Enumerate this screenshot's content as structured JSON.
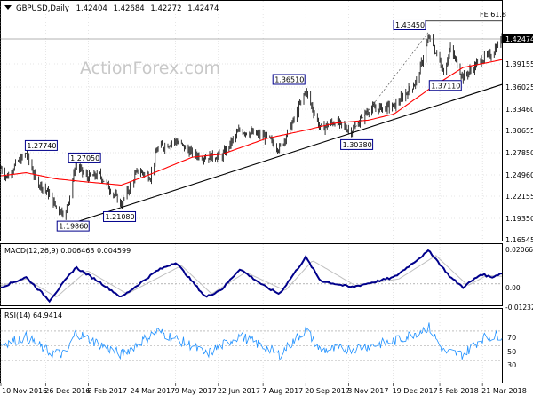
{
  "header": {
    "symbol_line": "GBPUSD,Daily",
    "ohlc": [
      "1.42404",
      "1.42684",
      "1.42272",
      "1.42474"
    ]
  },
  "watermark": "ActionForex.com",
  "colors": {
    "price_bars": "#000000",
    "moving_average": "#ff0000",
    "trendline": "#000000",
    "label_border": "#00008b",
    "macd_line": "#00008b",
    "signal_line": "#c0c0c0",
    "rsi_line": "#1e90ff",
    "grid": "#cccccc",
    "watermark": "#c8c8c8"
  },
  "price_panel": {
    "y_ticks": [
      "1.42474",
      "1.39155",
      "1.36025",
      "1.33460",
      "1.30655",
      "1.27850",
      "1.24960",
      "1.22155",
      "1.19350",
      "1.16545"
    ],
    "current_price_label": "1.42474",
    "fe_label": "FE 61.8",
    "annotations": [
      "1.27740",
      "1.27050",
      "1.19860",
      "1.21080",
      "1.36510",
      "1.30380",
      "1.43450",
      "1.37110"
    ]
  },
  "macd_panel": {
    "label": "MACD(12,26,9) 0.006463 0.004599",
    "y_ticks": [
      "0.020669",
      "0.00",
      "-0.012328"
    ]
  },
  "rsi_panel": {
    "label": "RSI(14) 64.9414",
    "y_ticks": [
      "70",
      "50",
      "30"
    ]
  },
  "x_axis_labels": [
    "10 Nov 2016",
    "26 Dec 2016",
    "8 Feb 2017",
    "24 Mar 2017",
    "9 May 2017",
    "22 Jun 2017",
    "7 Aug 2017",
    "20 Sep 2017",
    "3 Nov 2017",
    "19 Dec 2017",
    "5 Feb 2018",
    "21 Mar 2018"
  ],
  "chart_data": [
    {
      "type": "candlestick",
      "title": "GBPUSD,Daily",
      "x_range": [
        "2016-11-10",
        "2018-04-10"
      ],
      "ylim": [
        1.16,
        1.45
      ],
      "ohlc_last": {
        "open": 1.42404,
        "high": 1.42684,
        "low": 1.42272,
        "close": 1.42474
      },
      "price_path": [
        {
          "date": "2016-11-10",
          "close": 1.258
        },
        {
          "date": "2016-11-16",
          "close": 1.246
        },
        {
          "date": "2016-11-25",
          "close": 1.262
        },
        {
          "date": "2016-12-06",
          "close": 1.277
        },
        {
          "date": "2016-12-16",
          "close": 1.243
        },
        {
          "date": "2016-12-30",
          "close": 1.224
        },
        {
          "date": "2017-01-06",
          "close": 1.207
        },
        {
          "date": "2017-01-16",
          "close": 1.199
        },
        {
          "date": "2017-01-26",
          "close": 1.262
        },
        {
          "date": "2017-02-07",
          "close": 1.246
        },
        {
          "date": "2017-02-20",
          "close": 1.249
        },
        {
          "date": "2017-03-14",
          "close": 1.211
        },
        {
          "date": "2017-03-31",
          "close": 1.255
        },
        {
          "date": "2017-04-13",
          "close": 1.247
        },
        {
          "date": "2017-04-20",
          "close": 1.283
        },
        {
          "date": "2017-05-09",
          "close": 1.293
        },
        {
          "date": "2017-05-26",
          "close": 1.277
        },
        {
          "date": "2017-06-09",
          "close": 1.272
        },
        {
          "date": "2017-06-26",
          "close": 1.274
        },
        {
          "date": "2017-07-14",
          "close": 1.307
        },
        {
          "date": "2017-08-10",
          "close": 1.298
        },
        {
          "date": "2017-08-24",
          "close": 1.283
        },
        {
          "date": "2017-09-07",
          "close": 1.318
        },
        {
          "date": "2017-09-20",
          "close": 1.358
        },
        {
          "date": "2017-10-05",
          "close": 1.309
        },
        {
          "date": "2017-10-20",
          "close": 1.318
        },
        {
          "date": "2017-11-06",
          "close": 1.306
        },
        {
          "date": "2017-11-24",
          "close": 1.334
        },
        {
          "date": "2017-12-20",
          "close": 1.338
        },
        {
          "date": "2018-01-12",
          "close": 1.37
        },
        {
          "date": "2018-01-25",
          "close": 1.428
        },
        {
          "date": "2018-02-09",
          "close": 1.383
        },
        {
          "date": "2018-02-16",
          "close": 1.412
        },
        {
          "date": "2018-03-01",
          "close": 1.375
        },
        {
          "date": "2018-03-20",
          "close": 1.398
        },
        {
          "date": "2018-03-30",
          "close": 1.405
        },
        {
          "date": "2018-04-10",
          "close": 1.4247
        }
      ],
      "moving_average_path": [
        {
          "date": "2016-11-10",
          "value": 1.248
        },
        {
          "date": "2016-12-06",
          "value": 1.252
        },
        {
          "date": "2017-01-06",
          "value": 1.244
        },
        {
          "date": "2017-02-07",
          "value": 1.24
        },
        {
          "date": "2017-03-14",
          "value": 1.236
        },
        {
          "date": "2017-04-13",
          "value": 1.25
        },
        {
          "date": "2017-05-26",
          "value": 1.272
        },
        {
          "date": "2017-06-26",
          "value": 1.276
        },
        {
          "date": "2017-08-10",
          "value": 1.296
        },
        {
          "date": "2017-09-20",
          "value": 1.307
        },
        {
          "date": "2017-10-20",
          "value": 1.316
        },
        {
          "date": "2017-11-24",
          "value": 1.32
        },
        {
          "date": "2017-12-20",
          "value": 1.328
        },
        {
          "date": "2018-01-25",
          "value": 1.36
        },
        {
          "date": "2018-03-01",
          "value": 1.388
        },
        {
          "date": "2018-04-10",
          "value": 1.398
        }
      ],
      "trendline": [
        {
          "date": "2017-01-16",
          "value": 1.184
        },
        {
          "date": "2018-04-10",
          "value": 1.366
        }
      ],
      "fe_61_8_level": 1.448,
      "annotations": [
        {
          "text": "1.27740",
          "date": "2016-12-06",
          "value": 1.2774
        },
        {
          "text": "1.27050",
          "date": "2017-01-26",
          "value": 1.2705
        },
        {
          "text": "1.19860",
          "date": "2017-01-16",
          "value": 1.1986
        },
        {
          "text": "1.21080",
          "date": "2017-03-14",
          "value": 1.2108
        },
        {
          "text": "1.36510",
          "date": "2017-09-20",
          "value": 1.3651
        },
        {
          "text": "1.30380",
          "date": "2017-11-06",
          "value": 1.3038
        },
        {
          "text": "1.43450",
          "date": "2018-01-25",
          "value": 1.4345
        },
        {
          "text": "1.37110",
          "date": "2018-03-01",
          "value": 1.3711
        }
      ]
    },
    {
      "type": "line",
      "title": "MACD(12,26,9) 0.006463 0.004599",
      "ylim": [
        -0.0123,
        0.0207
      ],
      "series": [
        {
          "name": "MACD",
          "points": [
            {
              "date": "2016-11-10",
              "value": -0.002
            },
            {
              "date": "2016-12-06",
              "value": 0.004
            },
            {
              "date": "2016-12-30",
              "value": -0.01
            },
            {
              "date": "2017-01-26",
              "value": 0.01
            },
            {
              "date": "2017-02-20",
              "value": 0.001
            },
            {
              "date": "2017-03-14",
              "value": -0.008
            },
            {
              "date": "2017-04-20",
              "value": 0.008
            },
            {
              "date": "2017-05-09",
              "value": 0.013
            },
            {
              "date": "2017-06-09",
              "value": -0.008
            },
            {
              "date": "2017-06-26",
              "value": -0.003
            },
            {
              "date": "2017-07-14",
              "value": 0.009
            },
            {
              "date": "2017-08-10",
              "value": -0.002
            },
            {
              "date": "2017-08-24",
              "value": -0.006
            },
            {
              "date": "2017-09-20",
              "value": 0.016
            },
            {
              "date": "2017-10-05",
              "value": 0.002
            },
            {
              "date": "2017-11-06",
              "value": -0.002
            },
            {
              "date": "2017-12-20",
              "value": 0.004
            },
            {
              "date": "2018-01-25",
              "value": 0.02
            },
            {
              "date": "2018-02-16",
              "value": 0.004
            },
            {
              "date": "2018-03-01",
              "value": -0.002
            },
            {
              "date": "2018-03-20",
              "value": 0.006
            },
            {
              "date": "2018-03-30",
              "value": 0.004
            },
            {
              "date": "2018-04-10",
              "value": 0.0065
            }
          ]
        },
        {
          "name": "Signal",
          "points": [
            {
              "date": "2016-11-10",
              "value": -0.001
            },
            {
              "date": "2016-12-06",
              "value": 0.003
            },
            {
              "date": "2017-01-06",
              "value": -0.008
            },
            {
              "date": "2017-02-07",
              "value": 0.008
            },
            {
              "date": "2017-03-20",
              "value": -0.006
            },
            {
              "date": "2017-05-15",
              "value": 0.011
            },
            {
              "date": "2017-06-15",
              "value": -0.006
            },
            {
              "date": "2017-07-20",
              "value": 0.007
            },
            {
              "date": "2017-08-30",
              "value": -0.004
            },
            {
              "date": "2017-09-27",
              "value": 0.014
            },
            {
              "date": "2017-11-10",
              "value": -0.001
            },
            {
              "date": "2017-12-25",
              "value": 0.003
            },
            {
              "date": "2018-02-01",
              "value": 0.017
            },
            {
              "date": "2018-03-06",
              "value": -0.001
            },
            {
              "date": "2018-03-25",
              "value": 0.005
            },
            {
              "date": "2018-04-10",
              "value": 0.0046
            }
          ]
        }
      ]
    },
    {
      "type": "line",
      "title": "RSI(14) 64.9414",
      "ylim": [
        0,
        100
      ],
      "series": [
        {
          "name": "RSI(14)",
          "points": [
            {
              "date": "2016-11-10",
              "value": 52
            },
            {
              "date": "2016-12-06",
              "value": 62
            },
            {
              "date": "2016-12-30",
              "value": 41
            },
            {
              "date": "2017-01-16",
              "value": 38
            },
            {
              "date": "2017-01-26",
              "value": 68
            },
            {
              "date": "2017-02-20",
              "value": 52
            },
            {
              "date": "2017-03-14",
              "value": 38
            },
            {
              "date": "2017-04-20",
              "value": 70
            },
            {
              "date": "2017-05-26",
              "value": 50
            },
            {
              "date": "2017-06-09",
              "value": 38
            },
            {
              "date": "2017-07-14",
              "value": 64
            },
            {
              "date": "2017-08-24",
              "value": 38
            },
            {
              "date": "2017-09-20",
              "value": 72
            },
            {
              "date": "2017-10-05",
              "value": 44
            },
            {
              "date": "2017-11-06",
              "value": 46
            },
            {
              "date": "2017-12-20",
              "value": 56
            },
            {
              "date": "2018-01-25",
              "value": 75
            },
            {
              "date": "2018-02-09",
              "value": 42
            },
            {
              "date": "2018-03-01",
              "value": 38
            },
            {
              "date": "2018-03-20",
              "value": 60
            },
            {
              "date": "2018-04-10",
              "value": 64.94
            }
          ]
        }
      ]
    }
  ]
}
